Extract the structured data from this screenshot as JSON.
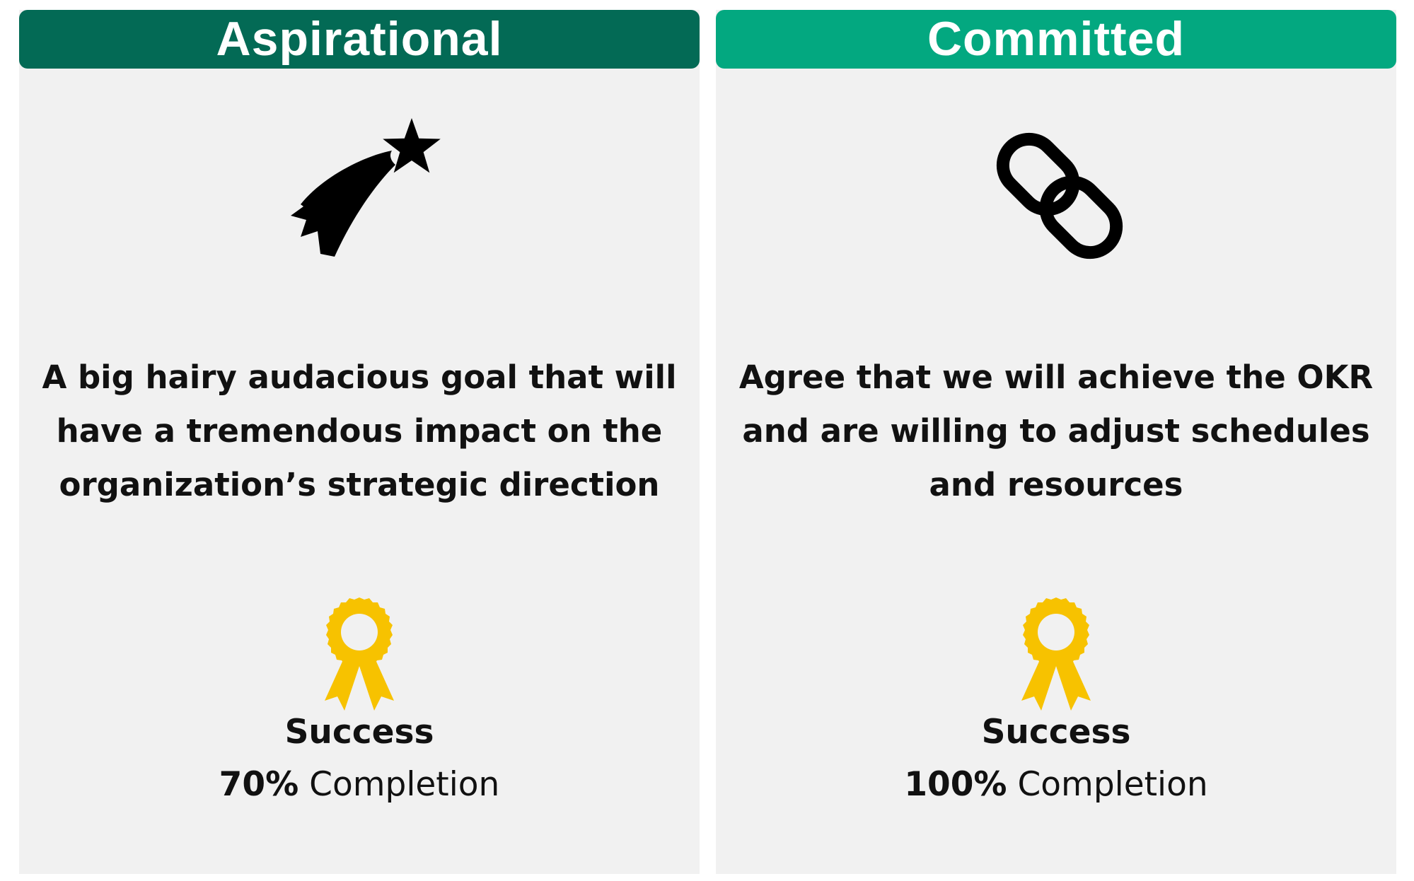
{
  "cards": [
    {
      "title": "Aspirational",
      "header_color": "#036a55",
      "icon": "shooting-star-icon",
      "description": "A big hairy audacious goal that will have a tremendous impact on the organization’s strategic direction",
      "success_icon": "award-ribbon-icon",
      "success_label": "Success",
      "completion_percent": "70%",
      "completion_text": "Completion"
    },
    {
      "title": "Committed",
      "header_color": "#03a880",
      "icon": "chain-link-icon",
      "description": "Agree that we will achieve the OKR and are willing to adjust schedules and resources",
      "success_icon": "award-ribbon-icon",
      "success_label": "Success",
      "completion_percent": "100%",
      "completion_text": "Completion"
    }
  ],
  "colors": {
    "card_background": "#f1f1f1",
    "ribbon": "#f7c200",
    "icon": "#000000"
  }
}
